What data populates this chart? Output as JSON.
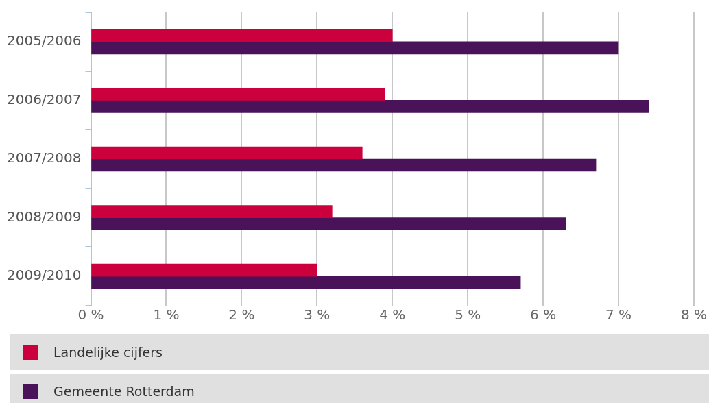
{
  "chart_data": {
    "type": "bar",
    "orientation": "horizontal",
    "categories": [
      "2005/2006",
      "2006/2007",
      "2007/2008",
      "2008/2009",
      "2009/2010"
    ],
    "series": [
      {
        "name": "Landelijke cijfers",
        "color": "#cc003d",
        "values": [
          4.0,
          3.9,
          3.6,
          3.2,
          3.0
        ]
      },
      {
        "name": "Gemeente Rotterdam",
        "color": "#4a1259",
        "values": [
          7.0,
          7.4,
          6.7,
          6.3,
          5.7
        ]
      }
    ],
    "xlim": [
      0,
      8
    ],
    "xticks": [
      {
        "value": 0,
        "label": "0 %"
      },
      {
        "value": 1,
        "label": "1 %"
      },
      {
        "value": 2,
        "label": "2 %"
      },
      {
        "value": 3,
        "label": "3 %"
      },
      {
        "value": 4,
        "label": "4 %"
      },
      {
        "value": 5,
        "label": "5 %"
      },
      {
        "value": 6,
        "label": "6 %"
      },
      {
        "value": 7,
        "label": "7 %"
      },
      {
        "value": 8,
        "label": "8 %"
      }
    ],
    "grid": "x",
    "legend": "bottom"
  }
}
